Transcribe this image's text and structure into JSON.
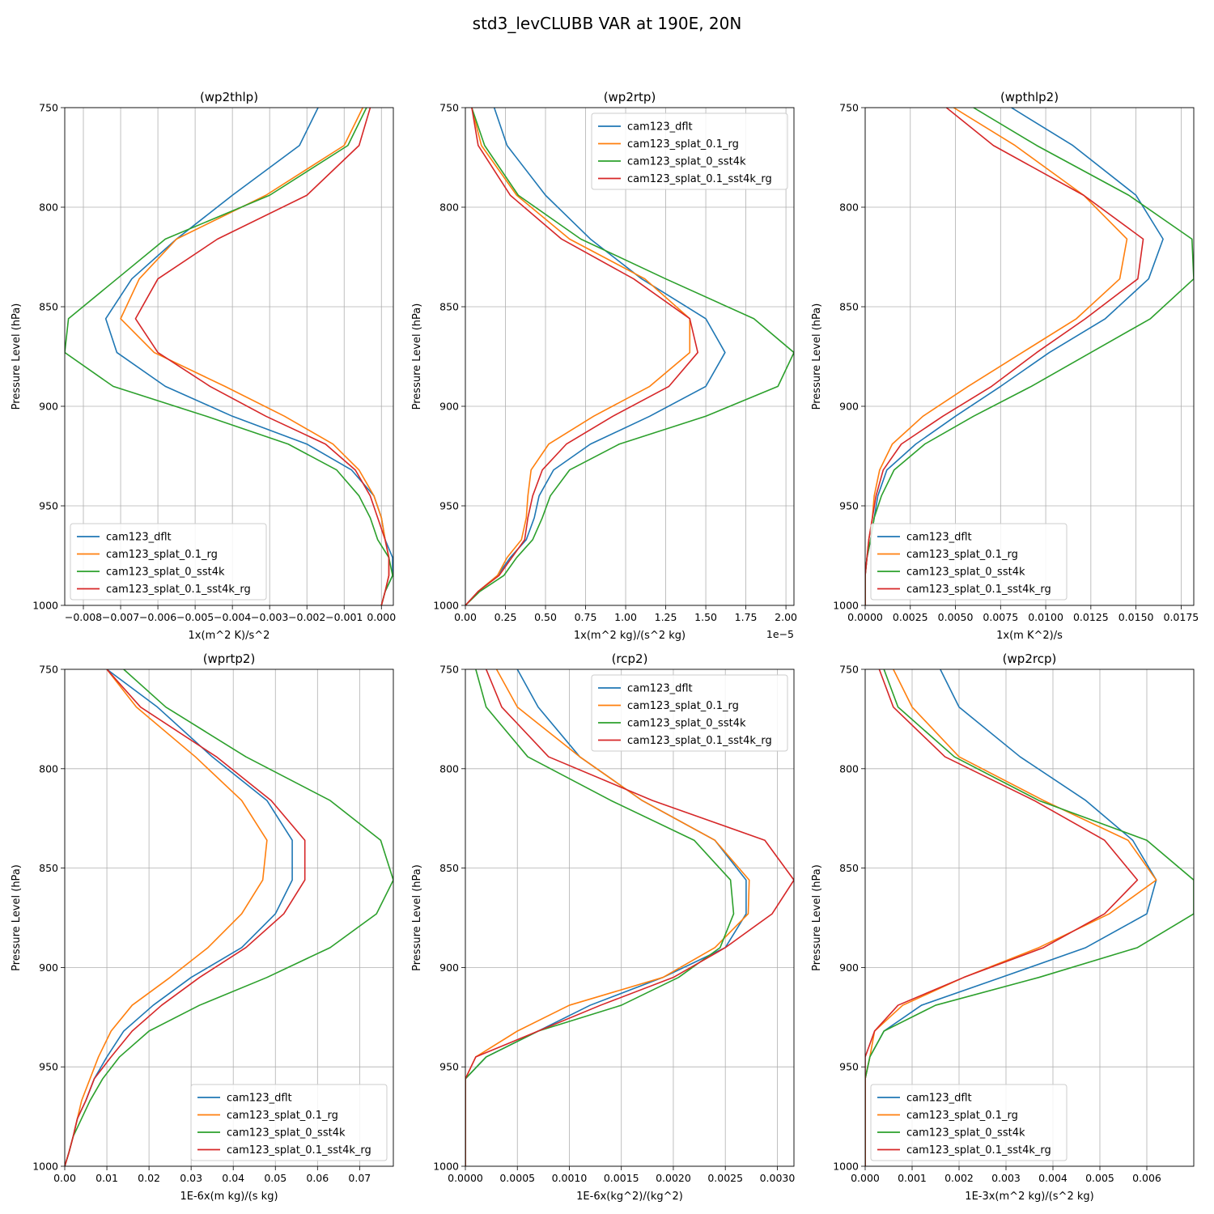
{
  "title": "std3_levCLUBB VAR at 190E, 20N",
  "ylabel": "Pressure Level (hPa)",
  "yticks": [
    750,
    800,
    850,
    900,
    950,
    1000
  ],
  "ylim": [
    1000,
    750
  ],
  "levels": [
    750,
    769,
    794,
    816,
    836,
    856,
    873,
    890,
    905,
    919,
    932,
    945,
    956,
    967,
    976,
    985,
    993,
    1000
  ],
  "legend_labels": [
    "cam123_dflt",
    "cam123_splat_0.1_rg",
    "cam123_splat_0_sst4k",
    "cam123_splat_0.1_sst4k_rg"
  ],
  "colors": [
    "#1f77b4",
    "#ff7f0e",
    "#2ca02c",
    "#d62728"
  ],
  "chart_data": [
    {
      "type": "line",
      "title": "(wp2thlp)",
      "xlabel": "1x(m^2 K)/s^2",
      "xlim": [
        -0.0085,
        0.00032
      ],
      "xticks": [
        -0.008,
        -0.007,
        -0.006,
        -0.005,
        -0.004,
        -0.003,
        -0.002,
        -0.001,
        0.0
      ],
      "xtick_labels": [
        "−0.008",
        "−0.007",
        "−0.006",
        "−0.005",
        "−0.004",
        "−0.003",
        "−0.002",
        "−0.001",
        "0.000"
      ],
      "offset_text": "",
      "legend": "lower-left",
      "series": [
        {
          "name": "cam123_dflt",
          "values": [
            -0.0017,
            -0.0022,
            -0.004,
            -0.0055,
            -0.0067,
            -0.0074,
            -0.0071,
            -0.0058,
            -0.004,
            -0.002,
            -0.0008,
            -0.0002,
            0.0,
            0.0001,
            0.0003,
            0.0003,
            0.0001,
            0.0
          ]
        },
        {
          "name": "cam123_splat_0.1_rg",
          "values": [
            -0.0005,
            -0.001,
            -0.0031,
            -0.0055,
            -0.0065,
            -0.007,
            -0.0061,
            -0.0042,
            -0.0026,
            -0.0013,
            -0.0006,
            -0.0002,
            0.0,
            0.0001,
            0.0002,
            0.0002,
            0.0001,
            0.0
          ]
        },
        {
          "name": "cam123_splat_0_sst4k",
          "values": [
            -0.0004,
            -0.0009,
            -0.003,
            -0.0058,
            -0.0071,
            -0.0084,
            -0.0085,
            -0.0072,
            -0.0047,
            -0.0025,
            -0.0012,
            -0.0006,
            -0.0003,
            -0.0001,
            0.0002,
            0.0003,
            0.0001,
            0.0
          ]
        },
        {
          "name": "cam123_splat_0.1_sst4k_rg",
          "values": [
            -0.0003,
            -0.0006,
            -0.002,
            -0.0044,
            -0.006,
            -0.0066,
            -0.006,
            -0.0046,
            -0.0031,
            -0.0015,
            -0.0007,
            -0.0003,
            -0.0001,
            0.0001,
            0.0002,
            0.0002,
            0.0001,
            0.0
          ]
        }
      ]
    },
    {
      "type": "line",
      "title": "(wp2rtp)",
      "xlabel": "1x(m^2 kg)/(s^2 kg)",
      "xlim": [
        0.0,
        2.05
      ],
      "xticks": [
        0.0,
        0.25,
        0.5,
        0.75,
        1.0,
        1.25,
        1.5,
        1.75,
        2.0
      ],
      "xtick_labels": [
        "0.00",
        "0.25",
        "0.50",
        "0.75",
        "1.00",
        "1.25",
        "1.50",
        "1.75",
        "2.00"
      ],
      "offset_text": "1e−5",
      "legend": "upper-right",
      "series": [
        {
          "name": "cam123_dflt",
          "values": [
            0.18,
            0.26,
            0.5,
            0.78,
            1.1,
            1.5,
            1.62,
            1.5,
            1.15,
            0.78,
            0.55,
            0.46,
            0.43,
            0.38,
            0.28,
            0.2,
            0.08,
            0.0
          ]
        },
        {
          "name": "cam123_splat_0.1_rg",
          "values": [
            0.04,
            0.1,
            0.32,
            0.65,
            1.12,
            1.4,
            1.4,
            1.15,
            0.8,
            0.52,
            0.41,
            0.39,
            0.38,
            0.35,
            0.26,
            0.2,
            0.08,
            0.0
          ]
        },
        {
          "name": "cam123_splat_0_sst4k",
          "values": [
            0.04,
            0.12,
            0.33,
            0.72,
            1.25,
            1.8,
            2.05,
            1.95,
            1.5,
            0.96,
            0.65,
            0.53,
            0.48,
            0.42,
            0.32,
            0.24,
            0.09,
            0.0
          ]
        },
        {
          "name": "cam123_splat_0.1_sst4k_rg",
          "values": [
            0.04,
            0.08,
            0.28,
            0.6,
            1.05,
            1.4,
            1.45,
            1.27,
            0.92,
            0.63,
            0.48,
            0.42,
            0.39,
            0.37,
            0.29,
            0.21,
            0.08,
            0.0
          ]
        }
      ]
    },
    {
      "type": "line",
      "title": "(wpthlp2)",
      "xlabel": "1x(m K^2)/s",
      "xlim": [
        0.0,
        0.0182
      ],
      "xticks": [
        0.0,
        0.0025,
        0.005,
        0.0075,
        0.01,
        0.0125,
        0.015,
        0.0175
      ],
      "xtick_labels": [
        "0.0000",
        "0.0025",
        "0.0050",
        "0.0075",
        "0.0100",
        "0.0125",
        "0.0150",
        "0.0175"
      ],
      "offset_text": "",
      "legend": "lower-left",
      "series": [
        {
          "name": "cam123_dflt",
          "values": [
            0.0081,
            0.0115,
            0.015,
            0.0165,
            0.0157,
            0.0133,
            0.0102,
            0.0075,
            0.005,
            0.0028,
            0.0012,
            0.0007,
            0.0005,
            0.0003,
            0.0001,
            0.0,
            0.0,
            0.0
          ]
        },
        {
          "name": "cam123_splat_0.1_rg",
          "values": [
            0.0049,
            0.0083,
            0.0121,
            0.0145,
            0.0141,
            0.0117,
            0.0087,
            0.0057,
            0.0032,
            0.0015,
            0.0008,
            0.0005,
            0.0004,
            0.0002,
            0.0001,
            0.0,
            0.0,
            0.0
          ]
        },
        {
          "name": "cam123_splat_0_sst4k",
          "values": [
            0.006,
            0.0095,
            0.0146,
            0.0181,
            0.0182,
            0.0158,
            0.0125,
            0.0092,
            0.006,
            0.0033,
            0.0016,
            0.0009,
            0.0005,
            0.0003,
            0.0001,
            0.0,
            0.0,
            0.0
          ]
        },
        {
          "name": "cam123_splat_0.1_sst4k_rg",
          "values": [
            0.0045,
            0.0071,
            0.0121,
            0.0154,
            0.0151,
            0.0122,
            0.0095,
            0.007,
            0.0043,
            0.002,
            0.001,
            0.0006,
            0.0004,
            0.0002,
            0.0001,
            0.0,
            0.0,
            0.0
          ]
        }
      ]
    },
    {
      "type": "line",
      "title": "(wprtp2)",
      "xlabel": "1E-6x(m kg)/(s kg)",
      "xlim": [
        0.0,
        0.078
      ],
      "xticks": [
        0.0,
        0.01,
        0.02,
        0.03,
        0.04,
        0.05,
        0.06,
        0.07
      ],
      "xtick_labels": [
        "0.00",
        "0.01",
        "0.02",
        "0.03",
        "0.04",
        "0.05",
        "0.06",
        "0.07"
      ],
      "offset_text": "",
      "legend": "lower-right",
      "series": [
        {
          "name": "cam123_dflt",
          "values": [
            0.01,
            0.022,
            0.035,
            0.048,
            0.054,
            0.054,
            0.05,
            0.042,
            0.03,
            0.021,
            0.014,
            0.01,
            0.007,
            0.005,
            0.003,
            0.002,
            0.001,
            0.0
          ]
        },
        {
          "name": "cam123_splat_0.1_rg",
          "values": [
            0.01,
            0.017,
            0.031,
            0.042,
            0.048,
            0.047,
            0.042,
            0.034,
            0.025,
            0.016,
            0.011,
            0.008,
            0.006,
            0.004,
            0.003,
            0.002,
            0.001,
            0.0
          ]
        },
        {
          "name": "cam123_splat_0_sst4k",
          "values": [
            0.014,
            0.024,
            0.043,
            0.063,
            0.075,
            0.078,
            0.074,
            0.063,
            0.048,
            0.032,
            0.02,
            0.013,
            0.009,
            0.006,
            0.004,
            0.002,
            0.001,
            0.0
          ]
        },
        {
          "name": "cam123_splat_0.1_sst4k_rg",
          "values": [
            0.01,
            0.018,
            0.036,
            0.049,
            0.057,
            0.057,
            0.052,
            0.043,
            0.032,
            0.023,
            0.016,
            0.011,
            0.007,
            0.005,
            0.003,
            0.002,
            0.001,
            0.0
          ]
        }
      ]
    },
    {
      "type": "line",
      "title": "(rcp2)",
      "xlabel": "1E-6x(kg^2)/(kg^2)",
      "xlim": [
        0.0,
        0.00316
      ],
      "xticks": [
        0.0,
        0.0005,
        0.001,
        0.0015,
        0.002,
        0.0025,
        0.003
      ],
      "xtick_labels": [
        "0.0000",
        "0.0005",
        "0.0010",
        "0.0015",
        "0.0020",
        "0.0025",
        "0.0030"
      ],
      "offset_text": "",
      "legend": "upper-right",
      "series": [
        {
          "name": "cam123_dflt",
          "values": [
            0.0005,
            0.0007,
            0.0011,
            0.0017,
            0.0024,
            0.0027,
            0.0027,
            0.0025,
            0.0019,
            0.0012,
            0.0007,
            0.0002,
            0.0,
            0.0,
            0.0,
            0.0,
            0.0,
            0.0
          ]
        },
        {
          "name": "cam123_splat_0.1_rg",
          "values": [
            0.0003,
            0.0005,
            0.0011,
            0.0017,
            0.0024,
            0.00273,
            0.00272,
            0.0024,
            0.0019,
            0.001,
            0.0005,
            0.0001,
            0.0,
            0.0,
            0.0,
            0.0,
            0.0,
            0.0
          ]
        },
        {
          "name": "cam123_splat_0_sst4k",
          "values": [
            0.0001,
            0.0002,
            0.0006,
            0.0014,
            0.0022,
            0.00255,
            0.00258,
            0.00245,
            0.00205,
            0.0015,
            0.0007,
            0.0002,
            0.0,
            0.0,
            0.0,
            0.0,
            0.0,
            0.0
          ]
        },
        {
          "name": "cam123_splat_0.1_sst4k_rg",
          "values": [
            0.0002,
            0.00035,
            0.0008,
            0.0018,
            0.00288,
            0.00316,
            0.00295,
            0.0025,
            0.002,
            0.0013,
            0.0007,
            0.0001,
            0.0,
            0.0,
            0.0,
            0.0,
            0.0,
            0.0
          ]
        }
      ]
    },
    {
      "type": "line",
      "title": "(wp2rcp)",
      "xlabel": "1E-3x(m^2 kg)/(s^2 kg)",
      "xlim": [
        0.0,
        0.007
      ],
      "xticks": [
        0.0,
        0.001,
        0.002,
        0.003,
        0.004,
        0.005,
        0.006
      ],
      "xtick_labels": [
        "0.000",
        "0.001",
        "0.002",
        "0.003",
        "0.004",
        "0.005",
        "0.006"
      ],
      "offset_text": "",
      "legend": "lower-left",
      "series": [
        {
          "name": "cam123_dflt",
          "values": [
            0.0016,
            0.002,
            0.0033,
            0.0047,
            0.0057,
            0.0062,
            0.006,
            0.0047,
            0.0029,
            0.0012,
            0.0004,
            0.0001,
            0.0,
            0.0,
            0.0,
            0.0,
            0.0,
            0.0
          ]
        },
        {
          "name": "cam123_splat_0.1_rg",
          "values": [
            0.0006,
            0.001,
            0.002,
            0.0038,
            0.0056,
            0.0062,
            0.0052,
            0.0037,
            0.0021,
            0.0008,
            0.0002,
            0.0001,
            0.0,
            0.0,
            0.0,
            0.0,
            0.0,
            0.0
          ]
        },
        {
          "name": "cam123_splat_0_sst4k",
          "values": [
            0.0004,
            0.0007,
            0.0019,
            0.0037,
            0.006,
            0.007,
            0.007,
            0.0058,
            0.0037,
            0.0015,
            0.0004,
            0.0001,
            0.0,
            0.0,
            0.0,
            0.0,
            0.0,
            0.0
          ]
        },
        {
          "name": "cam123_splat_0.1_sst4k_rg",
          "values": [
            0.0003,
            0.0006,
            0.0017,
            0.0036,
            0.0051,
            0.0058,
            0.0051,
            0.0038,
            0.0021,
            0.0007,
            0.0002,
            0.0,
            0.0,
            0.0,
            0.0,
            0.0,
            0.0,
            0.0
          ]
        }
      ]
    }
  ]
}
